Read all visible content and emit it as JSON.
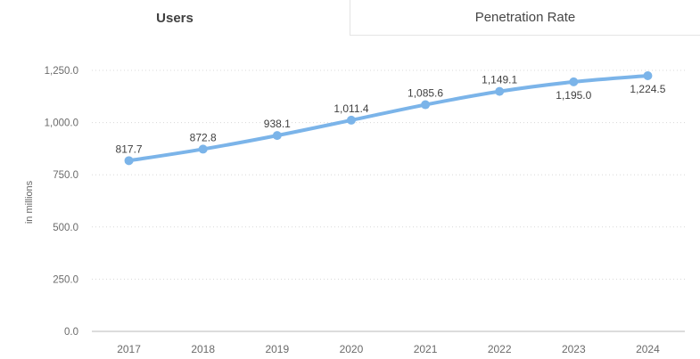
{
  "tabs": [
    {
      "label": "Users",
      "active": true
    },
    {
      "label": "Penetration Rate",
      "active": false
    }
  ],
  "colors": {
    "line": "#7bb4e9",
    "marker": "#7bb4e9",
    "grid": "#d8d8d8",
    "axis_line": "#b8b8b8",
    "tick_text": "#6b6b6b",
    "data_label_text": "#3f3f3f",
    "tab_text": "#404040",
    "tab_border": "#e4e4e4"
  },
  "chart_data": {
    "type": "line",
    "title": "Users",
    "xlabel": "",
    "ylabel": "in millions",
    "categories": [
      "2017",
      "2018",
      "2019",
      "2020",
      "2021",
      "2022",
      "2023",
      "2024"
    ],
    "series": [
      {
        "name": "Users",
        "values": [
          817.7,
          872.8,
          938.1,
          1011.4,
          1085.6,
          1149.1,
          1195.0,
          1224.5
        ],
        "point_labels": [
          "817.7",
          "872.8",
          "938.1",
          "1,011.4",
          "1,085.6",
          "1,149.1",
          "1,195.0",
          "1,224.5"
        ],
        "label_positions": [
          "above",
          "above",
          "above",
          "above",
          "above",
          "above",
          "below",
          "below"
        ]
      }
    ],
    "ylim": [
      0,
      1250
    ],
    "yticks": [
      {
        "value": 0,
        "label": "0.0"
      },
      {
        "value": 250,
        "label": "250.0"
      },
      {
        "value": 500,
        "label": "500.0"
      },
      {
        "value": 750,
        "label": "750.0"
      },
      {
        "value": 1000,
        "label": "1,000.0"
      },
      {
        "value": 1250,
        "label": "1,250.0"
      }
    ],
    "grid": "dotted horizontal",
    "legend": "none",
    "curve": "spline"
  }
}
